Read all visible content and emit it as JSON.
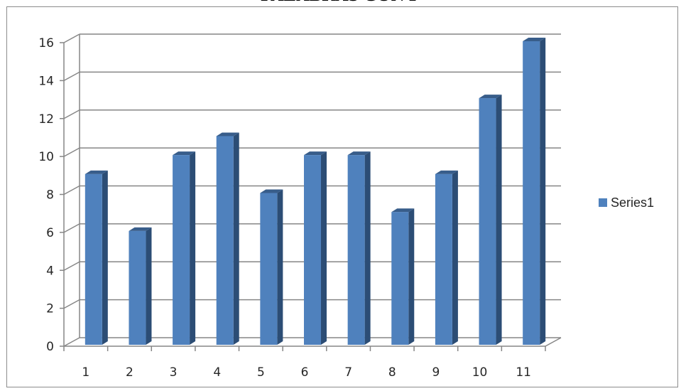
{
  "chart_data": {
    "type": "bar",
    "title": "PALABRAS CON P",
    "categories": [
      "1",
      "2",
      "3",
      "4",
      "5",
      "6",
      "7",
      "8",
      "9",
      "10",
      "11"
    ],
    "series": [
      {
        "name": "Series1",
        "values": [
          9,
          6,
          10,
          11,
          8,
          10,
          10,
          7,
          9,
          13,
          16
        ],
        "color": "#4f81bd"
      }
    ],
    "y_ticks": [
      "0",
      "2",
      "4",
      "6",
      "8",
      "10",
      "12",
      "14",
      "16"
    ],
    "ylim": [
      0,
      16
    ],
    "grid": true,
    "legend": "right",
    "style": "3d-column"
  }
}
